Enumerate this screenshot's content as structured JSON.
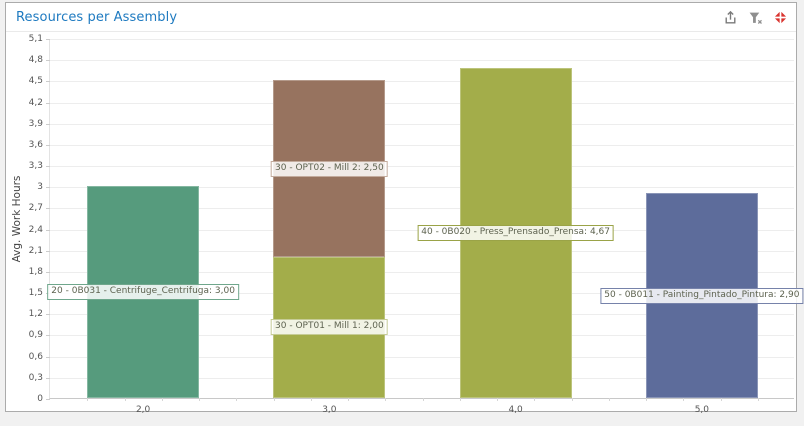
{
  "header": {
    "title": "Resources per Assembly",
    "icons": [
      {
        "name": "export-icon"
      },
      {
        "name": "clear-filter-icon"
      },
      {
        "name": "collapse-icon"
      }
    ],
    "icon_colors": {
      "export": "#7a7a7a",
      "clear_filter": "#8f8f8f",
      "collapse": "#d9332e"
    }
  },
  "chart_data": {
    "type": "bar",
    "stacked": true,
    "title": "Resources per Assembly",
    "xlabel": "",
    "ylabel": "Avg. Work Hours",
    "ylim": [
      0,
      5.1
    ],
    "ytick_step": 0.3,
    "ytick_labels": [
      "0",
      "0,3",
      "0,6",
      "0,9",
      "1,2",
      "1,5",
      "1,8",
      "2,1",
      "2,4",
      "2,7",
      "3",
      "3,3",
      "3,6",
      "3,9",
      "4,2",
      "4,5",
      "4,8",
      "5,1"
    ],
    "categories": [
      "2,0",
      "3,0",
      "4,0",
      "5,0"
    ],
    "grid": true,
    "legend": false,
    "bars": [
      {
        "category": "2,0",
        "segments": [
          {
            "label": "20 - 0B031 - Centrifuge_Centrifuga: 3,00",
            "value": 3.0,
            "color": "#569b7d",
            "border": "#6fa78c"
          }
        ]
      },
      {
        "category": "3,0",
        "segments": [
          {
            "label": "30 - OPT01 - Mill 1: 2,00",
            "value": 2.0,
            "color": "#a3ad4a",
            "border": "#c6cc96"
          },
          {
            "label": "30 - OPT02 - Mill 2: 2,50",
            "value": 2.5,
            "color": "#97735f",
            "border": "#c3ab9d"
          }
        ]
      },
      {
        "category": "4,0",
        "segments": [
          {
            "label": "40 - 0B020 - Press_Prensado_Prensa: 4,67",
            "value": 4.67,
            "color": "#a3ad4a",
            "border": "#9aa347"
          }
        ]
      },
      {
        "category": "5,0",
        "segments": [
          {
            "label": "50 - 0B011 - Painting_Pintado_Pintura: 2,90",
            "value": 2.9,
            "color": "#5d6c9b",
            "border": "#7682aa"
          }
        ]
      }
    ]
  }
}
